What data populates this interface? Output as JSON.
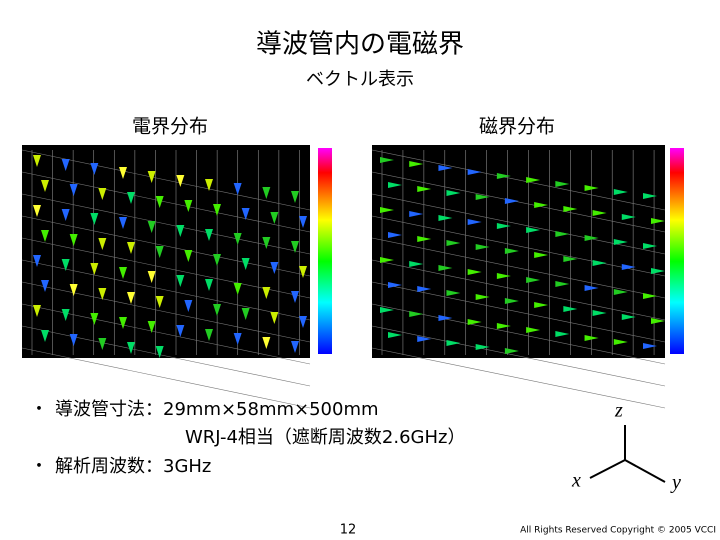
{
  "header": {
    "title": "導波管内の電磁界",
    "subtitle": "ベクトル表示"
  },
  "panels": [
    {
      "label": "電界分布"
    },
    {
      "label": "磁界分布"
    }
  ],
  "bullets": [
    "導波管寸法：29mm×58mm×500mm",
    "WRJ-4相当（遮断周波数2.6GHz）",
    "解析周波数：3GHz"
  ],
  "axes": {
    "z": "z",
    "x": "x",
    "y": "y"
  },
  "footer": {
    "page": "12",
    "copyright": "All Rights Reserved Copyright © 2005 VCCI"
  }
}
